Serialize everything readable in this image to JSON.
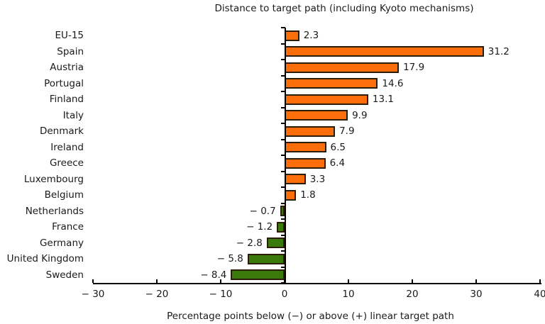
{
  "page": {
    "background": "#ffffff"
  },
  "chart_data": {
    "type": "bar",
    "orientation": "horizontal",
    "title": "Distance to target path (including Kyoto mechanisms)",
    "xlabel": "Percentage points below (−) or above (+) linear target path",
    "categories": [
      "EU-15",
      "Spain",
      "Austria",
      "Portugal",
      "Finland",
      "Italy",
      "Denmark",
      "Ireland",
      "Greece",
      "Luxembourg",
      "Belgium",
      "Netherlands",
      "France",
      "Germany",
      "United Kingdom",
      "Sweden"
    ],
    "values": [
      2.3,
      31.2,
      17.9,
      14.6,
      13.1,
      9.9,
      7.9,
      6.5,
      6.4,
      3.3,
      1.8,
      -0.7,
      -1.2,
      -2.8,
      -5.8,
      -8.4
    ],
    "value_labels": [
      "2.3",
      "31.2",
      "17.9",
      "14.6",
      "13.1",
      "9.9",
      "7.9",
      "6.5",
      "6.4",
      "3.3",
      "1.8",
      "− 0.7",
      "− 1.2",
      "− 2.8",
      "− 5.8",
      "− 8.4"
    ],
    "xlim": [
      -30,
      40
    ],
    "xticks": [
      -30,
      -20,
      -10,
      0,
      10,
      20,
      30,
      40
    ],
    "xtick_labels": [
      "− 30",
      "− 20",
      "− 10",
      "0",
      "10",
      "20",
      "30",
      "40"
    ],
    "grid": "off",
    "legend": "none",
    "colors": {
      "positive_bar": "#fb6e0a",
      "negative_bar": "#3a7a0a",
      "bar_border": "#2d1c06",
      "axis": "#000000",
      "text": "#1a1a1a"
    }
  }
}
